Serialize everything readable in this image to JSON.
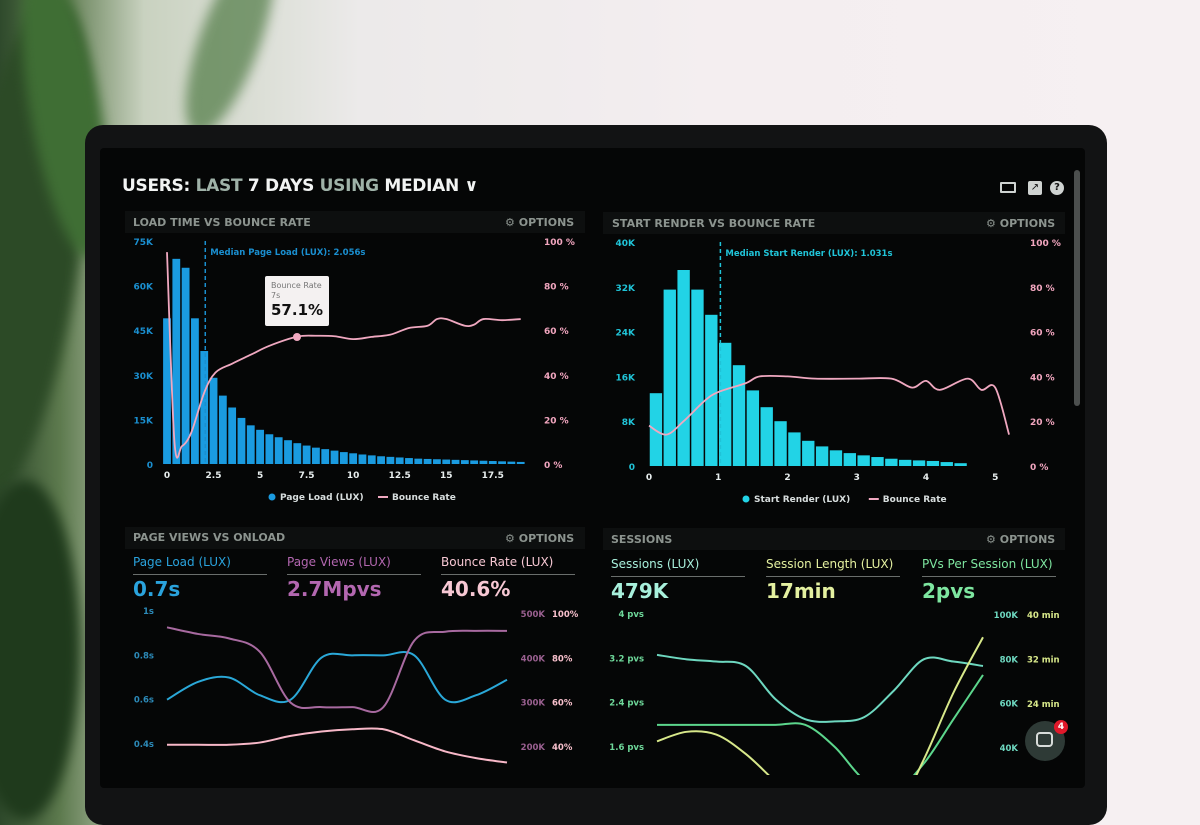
{
  "header": {
    "title_parts": [
      "USERS:",
      "LAST",
      "7 DAYS",
      "USING",
      "MEDIAN"
    ],
    "icons": [
      "monitor-icon",
      "share-icon",
      "help-icon"
    ]
  },
  "colors": {
    "page_load_bar": "#1a9be0",
    "start_render_bar": "#22d3e6",
    "bounce_rate": "#f0a8c0",
    "page_load_line": "#2aa8d8",
    "page_views_line": "#a86aa0",
    "sessions_line": "#6ed8c0",
    "session_length_line": "#d8e88a",
    "pvs_line": "#5cd68c"
  },
  "panels": [
    {
      "title": "LOAD TIME VS BOUNCE RATE",
      "options": "OPTIONS"
    },
    {
      "title": "START RENDER VS BOUNCE RATE",
      "options": "OPTIONS"
    },
    {
      "title": "PAGE VIEWS VS ONLOAD",
      "options": "OPTIONS",
      "metrics": [
        {
          "label": "Page Load (LUX)",
          "value": "0.7s",
          "color": "#2aa3dd"
        },
        {
          "label": "Page Views (LUX)",
          "value": "2.7Mpvs",
          "color": "#b367b0"
        },
        {
          "label": "Bounce Rate (LUX)",
          "value": "40.6%",
          "color": "#f8c8d4"
        }
      ]
    },
    {
      "title": "SESSIONS",
      "options": "OPTIONS",
      "metrics": [
        {
          "label": "Sessions (LUX)",
          "value": "479K",
          "color": "#a8f0dc"
        },
        {
          "label": "Session Length (LUX)",
          "value": "17min",
          "color": "#e4f0a0"
        },
        {
          "label": "PVs Per Session (LUX)",
          "value": "2pvs",
          "color": "#7ee6a0"
        }
      ]
    }
  ],
  "tooltip": {
    "series": "Bounce Rate",
    "x": "7s",
    "value": "57.1%"
  },
  "chat": {
    "badge": "4"
  },
  "chart_data": [
    {
      "type": "bar",
      "title": "LOAD TIME VS BOUNCE RATE",
      "x_ticks": [
        "0",
        "2.5",
        "5",
        "7.5",
        "10",
        "12.5",
        "15",
        "17.5"
      ],
      "x_tick_values": [
        0,
        2.5,
        5,
        7.5,
        10,
        12.5,
        15,
        17.5
      ],
      "y_ticks": [
        "0",
        "15K",
        "30K",
        "45K",
        "60K",
        "75K"
      ],
      "y2_ticks": [
        "0 %",
        "20 %",
        "40 %",
        "60 %",
        "80 %",
        "100 %"
      ],
      "xlim": [
        0,
        19.5
      ],
      "ylim": [
        0,
        75000
      ],
      "y2lim": [
        0,
        100
      ],
      "annotation": "Median Page Load (LUX): 2.056s",
      "median": 2.056,
      "bin_width": 0.5,
      "series": [
        {
          "name": "Page Load (LUX)",
          "kind": "bar",
          "x_start": 0,
          "values": [
            49000,
            69000,
            66000,
            49000,
            38000,
            29000,
            23000,
            19000,
            15500,
            13000,
            11500,
            10000,
            9000,
            8000,
            7000,
            6200,
            5500,
            5000,
            4500,
            4000,
            3600,
            3200,
            2900,
            2600,
            2400,
            2200,
            2000,
            1800,
            1700,
            1600,
            1500,
            1400,
            1300,
            1200,
            1100,
            1000,
            900,
            800,
            700
          ]
        },
        {
          "name": "Bounce Rate",
          "kind": "line",
          "axis": "y2",
          "x": [
            0,
            0.4,
            0.8,
            1.3,
            2,
            2.6,
            3.5,
            4.5,
            5.5,
            7,
            8,
            9,
            10,
            11,
            12,
            13,
            14,
            14.5,
            15,
            16,
            16.5,
            17,
            18,
            19
          ],
          "values": [
            95,
            10,
            8,
            14,
            32,
            41,
            45,
            49,
            53,
            57.1,
            57.5,
            57.3,
            56,
            57,
            58,
            61,
            62,
            65,
            65,
            62,
            62.5,
            65,
            64.5,
            65
          ]
        }
      ],
      "legend": "bottom"
    },
    {
      "type": "bar",
      "title": "START RENDER VS BOUNCE RATE",
      "x_ticks": [
        "0",
        "1",
        "2",
        "3",
        "4",
        "5"
      ],
      "x_tick_values": [
        0,
        1,
        2,
        3,
        4,
        5
      ],
      "y_ticks": [
        "0",
        "8K",
        "16K",
        "24K",
        "32K",
        "40K"
      ],
      "y2_ticks": [
        "0 %",
        "20 %",
        "40 %",
        "60 %",
        "80 %",
        "100 %"
      ],
      "xlim": [
        0,
        5.3
      ],
      "ylim": [
        0,
        40000
      ],
      "y2lim": [
        0,
        100
      ],
      "annotation": "Median Start Render (LUX): 1.031s",
      "median": 1.031,
      "bin_width": 0.2,
      "series": [
        {
          "name": "Start Render (LUX)",
          "kind": "bar",
          "x_start": 0.1,
          "values": [
            13000,
            31500,
            35000,
            31500,
            27000,
            22000,
            18000,
            13500,
            10500,
            8000,
            6000,
            4500,
            3500,
            2800,
            2300,
            1900,
            1600,
            1300,
            1100,
            1000,
            900,
            700,
            500
          ]
        },
        {
          "name": "Bounce Rate",
          "kind": "line",
          "axis": "y2",
          "x": [
            0,
            0.25,
            0.5,
            0.8,
            1.0,
            1.4,
            1.6,
            2.0,
            2.4,
            3.0,
            3.5,
            3.8,
            4.0,
            4.2,
            4.6,
            4.8,
            5.0,
            5.2
          ],
          "values": [
            18,
            14,
            20,
            29,
            33,
            37,
            40,
            40,
            39,
            39,
            39,
            35,
            38,
            34,
            39,
            34,
            35,
            14
          ]
        }
      ],
      "legend": "bottom"
    },
    {
      "type": "line",
      "title": "PAGE VIEWS VS ONLOAD",
      "y_ticks": [
        "0.4s",
        "0.6s",
        "0.8s",
        "1s"
      ],
      "y_tick_values": [
        0.4,
        0.6,
        0.8,
        1.0
      ],
      "y2_ticks": [
        "200K",
        "300K",
        "400K",
        "500K"
      ],
      "y2_tick_values": [
        200,
        300,
        400,
        500
      ],
      "y3_ticks": [
        "40%",
        "60%",
        "80%",
        "100%"
      ],
      "y3_tick_values": [
        40,
        60,
        80,
        100
      ],
      "series": [
        {
          "name": "Page Load (LUX)",
          "axis": "y",
          "values": [
            0.6,
            0.68,
            0.7,
            0.62,
            0.6,
            0.79,
            0.8,
            0.8,
            0.8,
            0.6,
            0.62,
            0.69
          ]
        },
        {
          "name": "Page Views (LUX)",
          "axis": "y2",
          "values": [
            470,
            455,
            445,
            415,
            300,
            290,
            290,
            290,
            440,
            460,
            462,
            462
          ]
        },
        {
          "name": "Bounce Rate (LUX)",
          "axis": "y3",
          "values": [
            41,
            41,
            41,
            42,
            45,
            47,
            48,
            48,
            43,
            38,
            35,
            33
          ]
        }
      ]
    },
    {
      "type": "line",
      "title": "SESSIONS",
      "y_ticks": [
        "1.6 pvs",
        "2.4 pvs",
        "3.2 pvs",
        "4 pvs"
      ],
      "y_tick_values": [
        1.6,
        2.4,
        3.2,
        4.0
      ],
      "y2_ticks": [
        "40K",
        "60K",
        "80K",
        "100K"
      ],
      "y2_tick_values": [
        40,
        60,
        80,
        100
      ],
      "y3_ticks": [
        "24 min",
        "32 min",
        "40 min"
      ],
      "y3_tick_values": [
        24,
        32,
        40
      ],
      "series": [
        {
          "name": "Sessions (LUX)",
          "axis": "y2",
          "values": [
            82,
            80,
            79,
            77,
            62,
            53,
            52,
            54,
            66,
            80,
            79,
            77
          ]
        },
        {
          "name": "PVs Per Session (LUX)",
          "axis": "y",
          "values": [
            2.0,
            2.0,
            2.0,
            2.0,
            2.0,
            2.0,
            1.6,
            1.0,
            0.8,
            1.3,
            2.1,
            2.9
          ]
        },
        {
          "name": "Session Length (LUX)",
          "axis": "y3",
          "values": [
            17.3,
            19,
            18.5,
            15,
            10,
            5,
            3,
            2,
            4,
            14,
            26,
            36
          ]
        }
      ]
    }
  ]
}
